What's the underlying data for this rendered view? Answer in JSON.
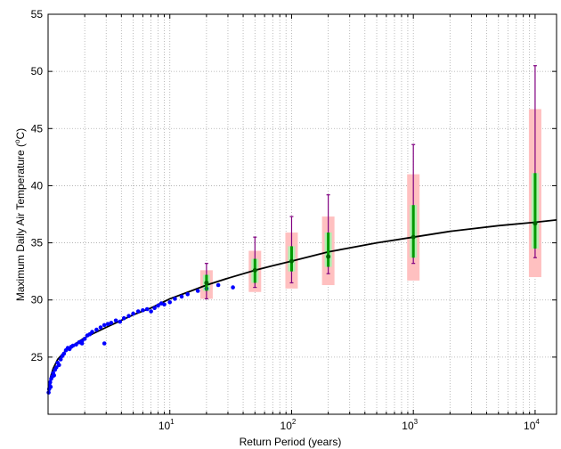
{
  "chart_data": {
    "type": "scatter",
    "title": "",
    "xlabel": "Return Period (years)",
    "ylabel_parts": {
      "before": "Maximum Daily Air Temperature (",
      "sup": "o",
      "after": "C)"
    },
    "x_scale": "log",
    "xlim": [
      1,
      15000
    ],
    "ylim": [
      20,
      55
    ],
    "grid": {
      "x_major": true,
      "x_minor": true,
      "y_major": true,
      "style": "dotted"
    },
    "x_tick_labels": [
      {
        "value": 10,
        "base": "10",
        "exp": "1"
      },
      {
        "value": 100,
        "base": "10",
        "exp": "2"
      },
      {
        "value": 1000,
        "base": "10",
        "exp": "3"
      },
      {
        "value": 10000,
        "base": "10",
        "exp": "4"
      }
    ],
    "y_ticks": [
      25,
      30,
      35,
      40,
      45,
      50,
      55
    ],
    "colors": {
      "observed": "#0000ff",
      "fit": "#000000",
      "outer_box": "#ffc0c0",
      "inner_box": "#b0f0b0",
      "whisker": "#800080",
      "center_bar": "#009900",
      "center_point": "#006600"
    },
    "series": [
      {
        "kind": "observed_points",
        "x": [
          1.01,
          1.02,
          1.03,
          1.04,
          1.05,
          1.06,
          1.08,
          1.1,
          1.12,
          1.14,
          1.17,
          1.2,
          1.23,
          1.27,
          1.31,
          1.35,
          1.4,
          1.45,
          1.5,
          1.55,
          1.6,
          1.7,
          1.8,
          1.9,
          2.0,
          2.1,
          2.2,
          2.3,
          2.5,
          2.7,
          2.9,
          3.1,
          3.3,
          3.6,
          3.9,
          4.2,
          4.6,
          5.0,
          5.5,
          6.0,
          6.5,
          7.0,
          7.5,
          8.0,
          8.5,
          9.0,
          10.0,
          11.0,
          12.5,
          14.0,
          17.0,
          20.0,
          25.0,
          33.0,
          2.9,
          1.9
        ],
        "y": [
          21.9,
          22.2,
          22.5,
          22.8,
          22.4,
          23.1,
          23.3,
          23.6,
          23.4,
          23.9,
          24.1,
          24.5,
          24.3,
          24.8,
          25.1,
          25.3,
          25.6,
          25.8,
          25.7,
          25.9,
          26.0,
          26.1,
          26.3,
          26.2,
          26.6,
          26.9,
          27.0,
          27.2,
          27.4,
          27.6,
          27.8,
          27.9,
          28.0,
          28.2,
          28.1,
          28.4,
          28.6,
          28.8,
          29.0,
          29.1,
          29.2,
          29.0,
          29.3,
          29.5,
          29.7,
          29.6,
          29.8,
          30.1,
          30.3,
          30.5,
          30.8,
          31.0,
          31.3,
          31.1,
          26.2,
          26.4
        ]
      },
      {
        "kind": "fitted_curve",
        "x": [
          1.02,
          1.05,
          1.1,
          1.2,
          1.35,
          1.5,
          1.75,
          2,
          3,
          5,
          7,
          10,
          15,
          20,
          30,
          50,
          70,
          100,
          200,
          500,
          1000,
          2000,
          5000,
          10000,
          15000
        ],
        "y": [
          22.4,
          23.3,
          24.0,
          24.8,
          25.4,
          25.8,
          26.3,
          26.7,
          27.6,
          28.7,
          29.3,
          30.1,
          30.8,
          31.3,
          31.9,
          32.6,
          33.0,
          33.4,
          34.2,
          35.0,
          35.5,
          36.0,
          36.5,
          36.8,
          37.0
        ]
      }
    ],
    "intervals": [
      {
        "x": 20,
        "center": 31.5,
        "inner_low": 30.8,
        "inner_high": 32.2,
        "outer_low": 30.1,
        "outer_high": 32.6,
        "whisker_low": 30.1,
        "whisker_high": 33.2
      },
      {
        "x": 50,
        "center": 32.6,
        "inner_low": 31.5,
        "inner_high": 33.6,
        "outer_low": 30.7,
        "outer_high": 34.3,
        "whisker_low": 31.1,
        "whisker_high": 35.5
      },
      {
        "x": 100,
        "center": 33.4,
        "inner_low": 32.5,
        "inner_high": 34.7,
        "outer_low": 31.0,
        "outer_high": 35.9,
        "whisker_low": 31.5,
        "whisker_high": 37.3
      },
      {
        "x": 200,
        "center": 33.8,
        "inner_low": 32.9,
        "inner_high": 35.9,
        "outer_low": 31.3,
        "outer_high": 37.3,
        "whisker_low": 32.3,
        "whisker_high": 39.2
      },
      {
        "x": 1000,
        "center": 35.5,
        "inner_low": 33.7,
        "inner_high": 38.3,
        "outer_low": 31.7,
        "outer_high": 41.0,
        "whisker_low": 33.2,
        "whisker_high": 43.6
      },
      {
        "x": 10000,
        "center": 36.7,
        "inner_low": 34.5,
        "inner_high": 41.1,
        "outer_low": 32.0,
        "outer_high": 46.7,
        "whisker_low": 33.7,
        "whisker_high": 50.5
      }
    ]
  }
}
